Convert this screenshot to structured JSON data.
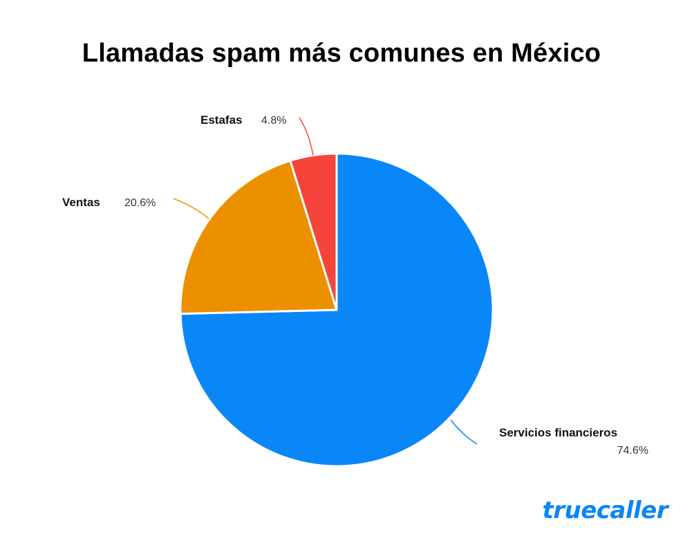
{
  "chart_data": {
    "type": "pie",
    "title": "Llamadas spam más comunes en México",
    "slices": [
      {
        "label": "Servicios financieros",
        "value": 74.6,
        "value_label": "74.6%",
        "color": "#0987f9"
      },
      {
        "label": "Ventas",
        "value": 20.6,
        "value_label": "20.6%",
        "color": "#ec9000"
      },
      {
        "label": "Estafas",
        "value": 4.8,
        "value_label": "4.8%",
        "color": "#f5453a"
      }
    ],
    "start": "12 o'clock, clockwise"
  },
  "brand": {
    "logo_text": "truecaller",
    "color": "#0b87f4"
  }
}
